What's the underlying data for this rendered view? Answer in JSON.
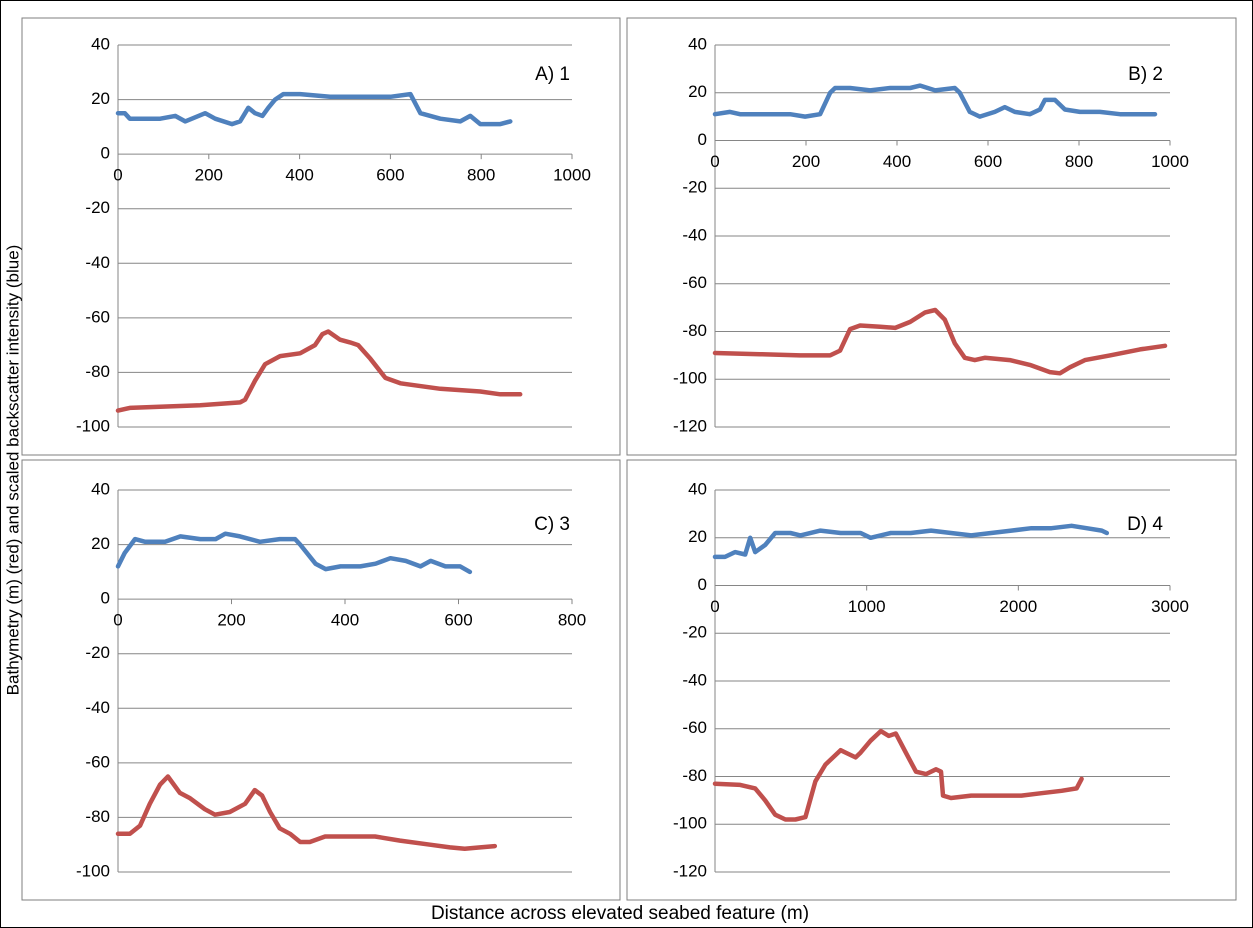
{
  "y_label": "Bathymetry (m) (red) and scaled backscatter intensity (blue)",
  "x_label": "Distance across elevated seabed feature (m)",
  "chart_data": [
    {
      "type": "line",
      "annotation": "A) 1",
      "grid": true,
      "xlim": [
        0,
        1000
      ],
      "xticks": [
        0,
        200,
        400,
        600,
        800,
        1000
      ],
      "ylim": [
        -100,
        40
      ],
      "yticks": [
        -100,
        -80,
        -60,
        -40,
        -20,
        0,
        20,
        40
      ],
      "series": [
        {
          "color": "#4f81bd",
          "x": [
            0,
            15,
            26,
            93,
            126,
            148,
            192,
            214,
            251,
            269,
            287,
            302,
            318,
            331,
            346,
            364,
            401,
            467,
            534,
            600,
            644,
            666,
            710,
            754,
            776,
            798,
            842,
            864
          ],
          "values": [
            15,
            15,
            13,
            13,
            14,
            12,
            15,
            13,
            11,
            12,
            17,
            15,
            14,
            17,
            20,
            22,
            22,
            21,
            21,
            21,
            22,
            15,
            13,
            12,
            14,
            11,
            11,
            12
          ]
        },
        {
          "color": "#c0504d",
          "x": [
            0,
            26,
            181,
            269,
            280,
            302,
            324,
            357,
            401,
            434,
            450,
            463,
            489,
            511,
            529,
            556,
            589,
            622,
            710,
            798,
            842,
            886
          ],
          "values": [
            -94,
            -93,
            -92,
            -91,
            -90,
            -83,
            -77,
            -74,
            -73,
            -70,
            -66,
            -65,
            -68,
            -69,
            -70,
            -75,
            -82,
            -84,
            -86,
            -87,
            -88,
            -88
          ]
        }
      ]
    },
    {
      "type": "line",
      "annotation": "B) 2",
      "grid": true,
      "xlim": [
        0,
        1000
      ],
      "xticks": [
        0,
        200,
        400,
        600,
        800,
        1000
      ],
      "ylim": [
        -120,
        40
      ],
      "yticks": [
        -120,
        -100,
        -80,
        -60,
        -40,
        -20,
        0,
        20,
        40
      ],
      "series": [
        {
          "color": "#4f81bd",
          "x": [
            0,
            33,
            55,
            99,
            165,
            198,
            231,
            253,
            264,
            297,
            341,
            385,
            429,
            451,
            484,
            527,
            538,
            560,
            582,
            615,
            637,
            659,
            692,
            714,
            725,
            747,
            769,
            802,
            846,
            890,
            934,
            967
          ],
          "values": [
            11,
            12,
            11,
            11,
            11,
            10,
            11,
            20,
            22,
            22,
            21,
            22,
            22,
            23,
            21,
            22,
            20,
            12,
            10,
            12,
            14,
            12,
            11,
            13,
            17,
            17,
            13,
            12,
            12,
            11,
            11,
            11
          ]
        },
        {
          "color": "#c0504d",
          "x": [
            0,
            99,
            187,
            253,
            275,
            297,
            319,
            363,
            396,
            429,
            462,
            484,
            505,
            527,
            549,
            571,
            593,
            648,
            692,
            736,
            758,
            780,
            813,
            868,
            934,
            989
          ],
          "values": [
            -89,
            -89.5,
            -90,
            -90,
            -88,
            -79,
            -77.5,
            -78,
            -78.5,
            -76,
            -72,
            -71,
            -75,
            -85,
            -91,
            -92,
            -91,
            -92,
            -94,
            -97,
            -97.5,
            -95,
            -92,
            -90,
            -87.5,
            -86
          ]
        }
      ]
    },
    {
      "type": "line",
      "annotation": "C) 3",
      "grid": true,
      "xlim": [
        0,
        800
      ],
      "xticks": [
        0,
        200,
        400,
        600,
        800
      ],
      "ylim": [
        -100,
        40
      ],
      "yticks": [
        -100,
        -80,
        -60,
        -40,
        -20,
        0,
        20,
        40
      ],
      "series": [
        {
          "color": "#4f81bd",
          "x": [
            0,
            12,
            30,
            48,
            83,
            110,
            145,
            172,
            189,
            215,
            250,
            285,
            312,
            321,
            348,
            366,
            392,
            427,
            454,
            480,
            507,
            533,
            551,
            577,
            603,
            620
          ],
          "values": [
            12,
            17,
            22,
            21,
            21,
            23,
            22,
            22,
            24,
            23,
            21,
            22,
            22,
            20,
            13,
            11,
            12,
            12,
            13,
            15,
            14,
            12,
            14,
            12,
            12,
            10
          ]
        },
        {
          "color": "#c0504d",
          "x": [
            0,
            21,
            39,
            56,
            74,
            88,
            109,
            127,
            153,
            171,
            197,
            224,
            241,
            254,
            268,
            285,
            303,
            321,
            338,
            365,
            409,
            453,
            497,
            550,
            585,
            611,
            638,
            664
          ],
          "values": [
            -86,
            -86,
            -83,
            -75,
            -68,
            -65,
            -71,
            -73,
            -77,
            -79,
            -78,
            -75,
            -70,
            -72,
            -78,
            -84,
            -86,
            -89,
            -89,
            -87,
            -87,
            -87,
            -88.5,
            -90,
            -91,
            -91.5,
            -91,
            -90.5
          ]
        }
      ]
    },
    {
      "type": "line",
      "annotation": "D) 4",
      "grid": true,
      "xlim": [
        0,
        3000
      ],
      "xticks": [
        0,
        1000,
        2000,
        3000
      ],
      "ylim": [
        -120,
        40
      ],
      "yticks": [
        -120,
        -100,
        -80,
        -60,
        -40,
        -20,
        0,
        20,
        40
      ],
      "series": [
        {
          "color": "#4f81bd",
          "x": [
            0,
            66,
            132,
            199,
            232,
            265,
            331,
            397,
            497,
            563,
            695,
            828,
            960,
            1026,
            1159,
            1291,
            1424,
            1556,
            1689,
            1821,
            1954,
            2086,
            2219,
            2351,
            2450,
            2550,
            2583
          ],
          "values": [
            12,
            12,
            14,
            13,
            20,
            14,
            17,
            22,
            22,
            21,
            23,
            22,
            22,
            20,
            22,
            22,
            23,
            22,
            21,
            22,
            23,
            24,
            24,
            25,
            24,
            23,
            22
          ]
        },
        {
          "color": "#c0504d",
          "x": [
            0,
            166,
            265,
            331,
            397,
            464,
            530,
            596,
            662,
            728,
            828,
            861,
            894,
            927,
            960,
            1026,
            1093,
            1146,
            1192,
            1258,
            1325,
            1391,
            1457,
            1490,
            1503,
            1556,
            1689,
            1887,
            2020,
            2152,
            2285,
            2384,
            2417
          ],
          "values": [
            -83,
            -83.5,
            -85,
            -90,
            -96,
            -98,
            -98,
            -97,
            -82,
            -75,
            -69,
            -70,
            -71,
            -72,
            -70,
            -65,
            -61,
            -63,
            -62,
            -70,
            -78,
            -79,
            -77,
            -78,
            -88,
            -89,
            -88,
            -88,
            -88,
            -87,
            -86,
            -85,
            -81
          ]
        }
      ]
    }
  ]
}
